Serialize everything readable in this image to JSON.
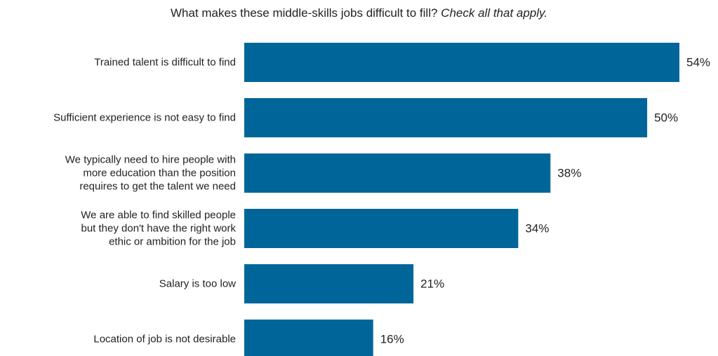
{
  "title": "What makes these middle-skills jobs difficult to fill?",
  "subtitle": "Check all that apply.",
  "colors": {
    "bar": "#006699"
  },
  "chart_data": {
    "type": "bar",
    "orientation": "horizontal",
    "title": "What makes these middle-skills jobs difficult to fill? Check all that apply.",
    "xlabel": "",
    "ylabel": "",
    "categories": [
      [
        "Trained talent is difficult to find"
      ],
      [
        "Sufficient experience is not easy to find"
      ],
      [
        "We typically need to hire people with",
        "more education than the position",
        "requires to get the talent we need"
      ],
      [
        "We are able to find skilled people",
        "but they don't have the right work",
        "ethic or ambition for the job"
      ],
      [
        "Salary is too low"
      ],
      [
        "Location of job is not desirable"
      ]
    ],
    "values": [
      54,
      50,
      38,
      34,
      21,
      16
    ],
    "value_labels": [
      "54%",
      "50%",
      "38%",
      "34%",
      "21%",
      "16%"
    ],
    "xlim": [
      0,
      54
    ],
    "grid": false,
    "legend": "none"
  }
}
